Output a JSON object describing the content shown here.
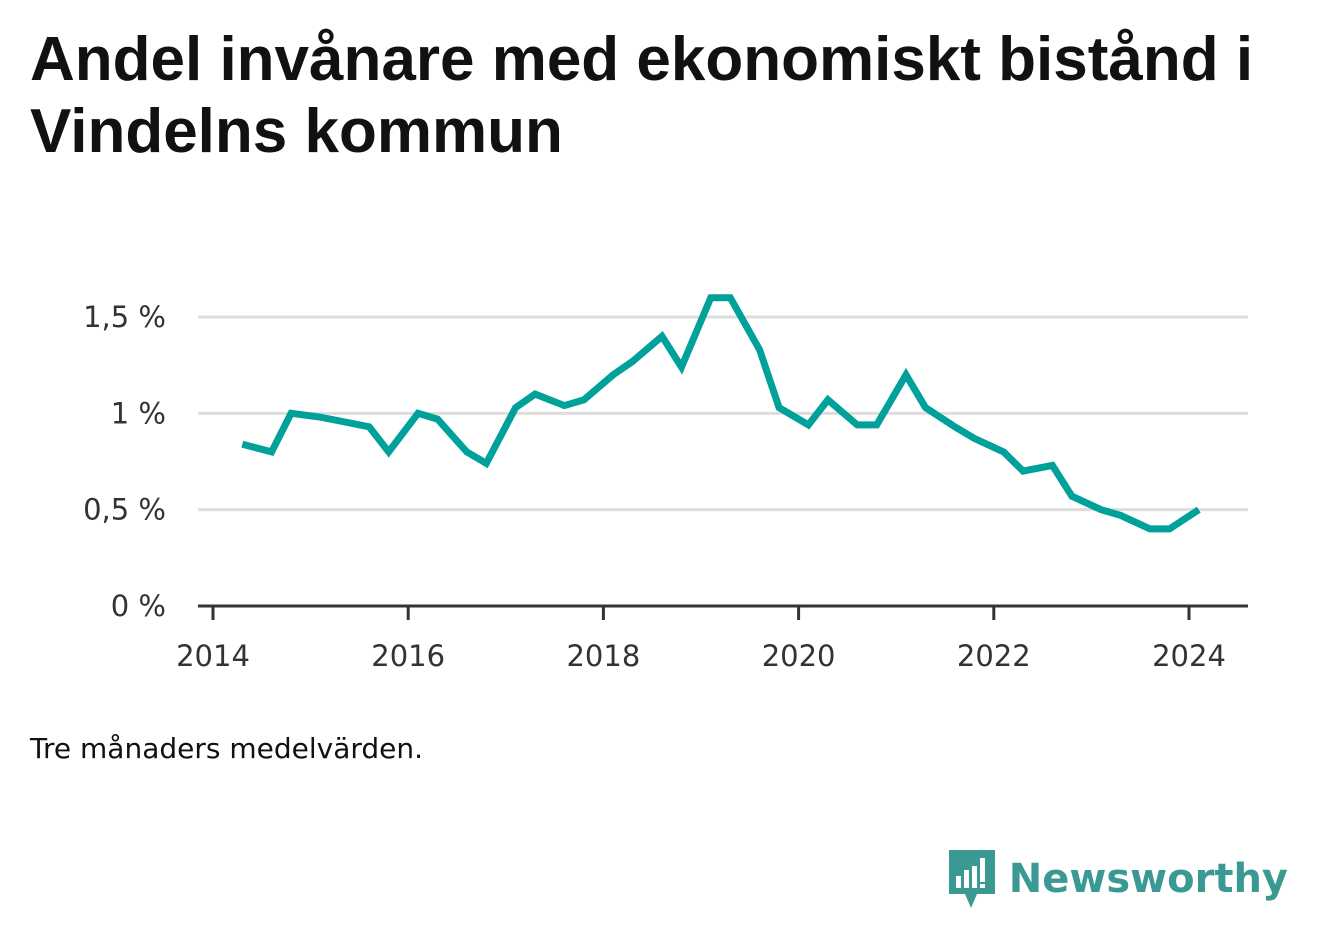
{
  "title": "Andel invånare med ekonomiskt bistånd i Vindelns kommun",
  "note": "Tre månaders medelvärden.",
  "brand": {
    "name": "Newsworthy",
    "logo_icon": "newsworthy-bars-icon",
    "color": "#3a9a93"
  },
  "colors": {
    "line": "#00a19a",
    "grid": "#dddddd",
    "axis": "#333333"
  },
  "chart_data": {
    "type": "line",
    "title": "Andel invånare med ekonomiskt bistånd i Vindelns kommun",
    "xlabel": "",
    "ylabel": "",
    "x_ticks": [
      "2014",
      "2016",
      "2018",
      "2020",
      "2022",
      "2024"
    ],
    "y_ticks": [
      "0 %",
      "0,5 %",
      "1 %",
      "1,5 %"
    ],
    "xlim": [
      2014.0,
      2024.6
    ],
    "ylim": [
      0,
      1.8
    ],
    "grid": true,
    "legend": "none",
    "series": [
      {
        "x": [
          2014.3,
          2014.6,
          2014.8,
          2015.1,
          2015.3,
          2015.6,
          2015.8,
          2016.1,
          2016.3,
          2016.6,
          2016.8,
          2017.1,
          2017.3,
          2017.6,
          2017.8,
          2018.1,
          2018.3,
          2018.6,
          2018.8,
          2019.1,
          2019.3,
          2019.6,
          2019.8,
          2020.1,
          2020.3,
          2020.6,
          2020.8,
          2021.1,
          2021.3,
          2021.6,
          2021.8,
          2022.1,
          2022.3,
          2022.6,
          2022.8,
          2023.1,
          2023.3,
          2023.6,
          2023.8,
          2024.1
        ],
        "values": [
          0.84,
          0.8,
          1.0,
          0.98,
          0.96,
          0.93,
          0.8,
          1.0,
          0.97,
          0.8,
          0.74,
          1.03,
          1.1,
          1.04,
          1.07,
          1.2,
          1.27,
          1.4,
          1.24,
          1.6,
          1.6,
          1.33,
          1.03,
          0.94,
          1.07,
          0.94,
          0.94,
          1.2,
          1.03,
          0.93,
          0.87,
          0.8,
          0.7,
          0.73,
          0.57,
          0.5,
          0.47,
          0.4,
          0.4,
          0.5
        ]
      }
    ]
  }
}
